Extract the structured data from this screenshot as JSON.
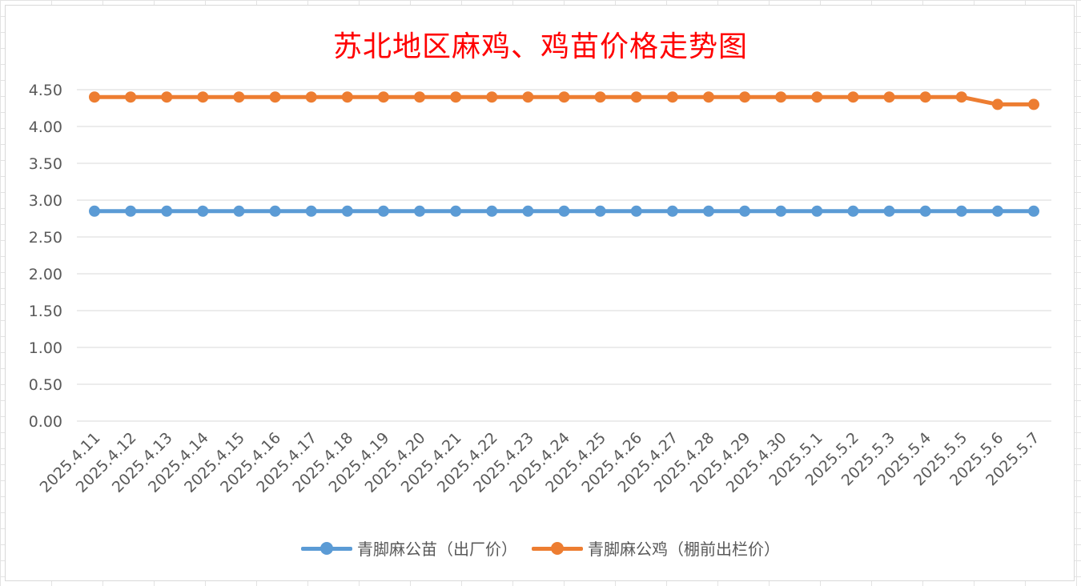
{
  "chart_data": {
    "type": "line",
    "title": "苏北地区麻鸡、鸡苗价格走势图",
    "xlabel": "",
    "ylabel": "",
    "ylim": [
      0,
      4.5
    ],
    "y_ticks": [
      "0.00",
      "0.50",
      "1.00",
      "1.50",
      "2.00",
      "2.50",
      "3.00",
      "3.50",
      "4.00",
      "4.50"
    ],
    "grid": true,
    "legend_position": "bottom",
    "categories": [
      "2025.4.11",
      "2025.4.12",
      "2025.4.13",
      "2025.4.14",
      "2025.4.15",
      "2025.4.16",
      "2025.4.17",
      "2025.4.18",
      "2025.4.19",
      "2025.4.20",
      "2025.4.21",
      "2025.4.22",
      "2025.4.23",
      "2025.4.24",
      "2025.4.25",
      "2025.4.26",
      "2025.4.27",
      "2025.4.28",
      "2025.4.29",
      "2025.4.30",
      "2025.5.1",
      "2025.5.2",
      "2025.5.3",
      "2025.5.4",
      "2025.5.5",
      "2025.5.6",
      "2025.5.7"
    ],
    "series": [
      {
        "name": "青脚麻公苗（出厂价）",
        "color": "#5b9bd5",
        "values": [
          2.85,
          2.85,
          2.85,
          2.85,
          2.85,
          2.85,
          2.85,
          2.85,
          2.85,
          2.85,
          2.85,
          2.85,
          2.85,
          2.85,
          2.85,
          2.85,
          2.85,
          2.85,
          2.85,
          2.85,
          2.85,
          2.85,
          2.85,
          2.85,
          2.85,
          2.85,
          2.85
        ]
      },
      {
        "name": "青脚麻公鸡（棚前出栏价）",
        "color": "#ed7d31",
        "values": [
          4.4,
          4.4,
          4.4,
          4.4,
          4.4,
          4.4,
          4.4,
          4.4,
          4.4,
          4.4,
          4.4,
          4.4,
          4.4,
          4.4,
          4.4,
          4.4,
          4.4,
          4.4,
          4.4,
          4.4,
          4.4,
          4.4,
          4.4,
          4.4,
          4.4,
          4.3,
          4.3
        ]
      }
    ]
  }
}
